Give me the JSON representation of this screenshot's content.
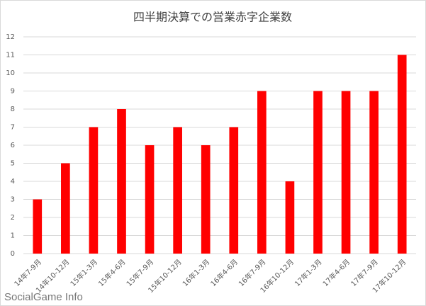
{
  "chart_data": {
    "type": "bar",
    "title": "四半期決算での営業赤字企業数",
    "categories": [
      "14年7-9月",
      "14年10-12月",
      "15年1-3月",
      "15年4-6月",
      "15年7-9月",
      "15年10-12月",
      "16年1-3月",
      "16年4-6月",
      "16年7-9月",
      "16年10-12月",
      "17年1-3月",
      "17年4-6月",
      "17年7-9月",
      "17年10-12月"
    ],
    "values": [
      3,
      5,
      7,
      8,
      6,
      7,
      6,
      7,
      9,
      4,
      9,
      9,
      9,
      11
    ],
    "color": "#ff0000",
    "ylim": [
      0,
      12
    ],
    "yticks": [
      0,
      1,
      2,
      3,
      4,
      5,
      6,
      7,
      8,
      9,
      10,
      11,
      12
    ],
    "grid": true
  },
  "watermark": "SocialGame Info"
}
